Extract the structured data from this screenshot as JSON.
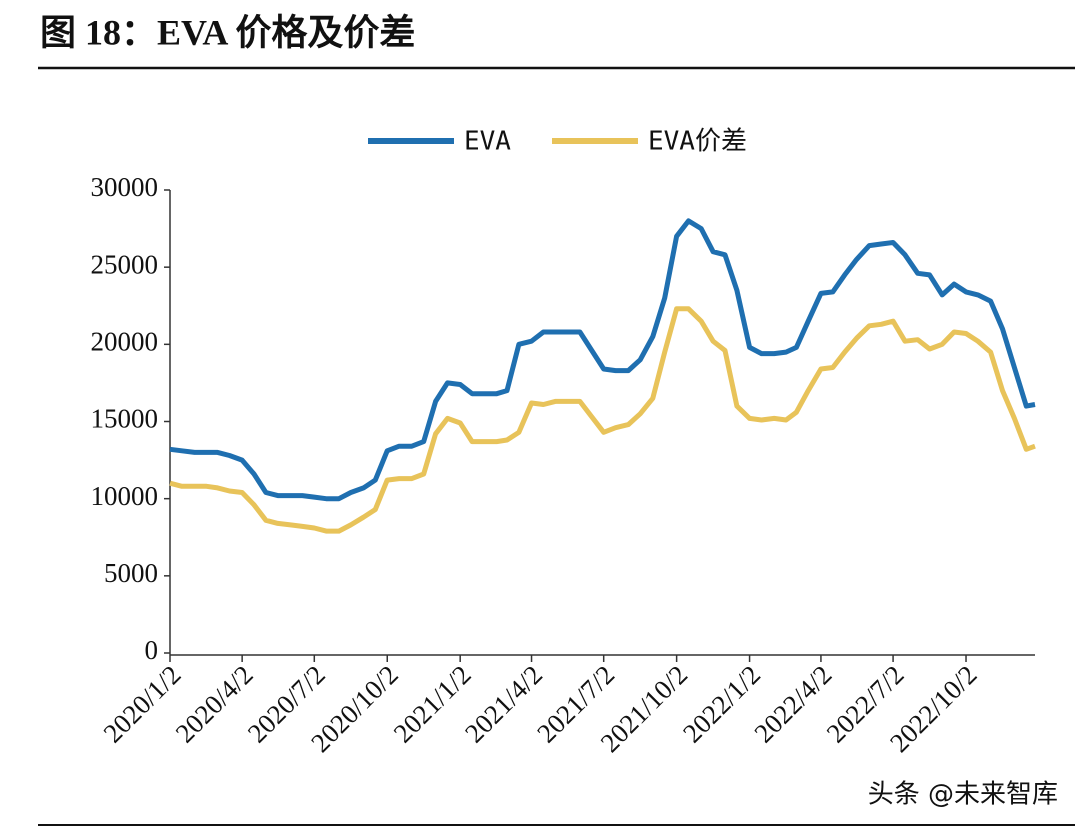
{
  "chart_data": {
    "type": "line",
    "title": "图 18：EVA 价格及价差",
    "watermark": "头条 @未来智库",
    "x": [
      "2020/1/2",
      "2020/1/17",
      "2020/2/2",
      "2020/2/17",
      "2020/3/2",
      "2020/3/17",
      "2020/4/2",
      "2020/4/17",
      "2020/5/2",
      "2020/5/17",
      "2020/6/2",
      "2020/6/17",
      "2020/7/2",
      "2020/7/17",
      "2020/8/2",
      "2020/8/17",
      "2020/9/2",
      "2020/9/17",
      "2020/10/2",
      "2020/10/17",
      "2020/11/2",
      "2020/11/17",
      "2020/12/2",
      "2020/12/17",
      "2021/1/2",
      "2021/1/17",
      "2021/2/2",
      "2021/2/17",
      "2021/3/2",
      "2021/3/17",
      "2021/4/2",
      "2021/4/17",
      "2021/5/2",
      "2021/5/17",
      "2021/6/2",
      "2021/6/17",
      "2021/7/2",
      "2021/7/17",
      "2021/8/2",
      "2021/8/17",
      "2021/9/2",
      "2021/9/17",
      "2021/10/2",
      "2021/10/17",
      "2021/11/2",
      "2021/11/17",
      "2021/12/2",
      "2021/12/17",
      "2022/1/2",
      "2022/1/17",
      "2022/2/2",
      "2022/2/17",
      "2022/3/2",
      "2022/3/17",
      "2022/4/2",
      "2022/4/17",
      "2022/5/2",
      "2022/5/17",
      "2022/6/2",
      "2022/6/17",
      "2022/7/2",
      "2022/7/17",
      "2022/8/2",
      "2022/8/17",
      "2022/9/2",
      "2022/9/17",
      "2022/10/2",
      "2022/10/17",
      "2022/11/2",
      "2022/11/17",
      "2022/12/2",
      "2022/12/17",
      "2022/12/28"
    ],
    "series": [
      {
        "name": "EVA",
        "color": "#1f6fb0",
        "values": [
          13200,
          13100,
          13000,
          13000,
          13000,
          12800,
          12500,
          11600,
          10400,
          10200,
          10200,
          10200,
          10100,
          10000,
          10000,
          10400,
          10700,
          11200,
          13100,
          13400,
          13400,
          13700,
          16300,
          17500,
          17400,
          16800,
          16800,
          16800,
          17000,
          20000,
          20200,
          20800,
          20800,
          20800,
          20800,
          19600,
          18400,
          18300,
          18300,
          19000,
          20500,
          23000,
          27000,
          28000,
          27500,
          26000,
          25800,
          23500,
          19800,
          19400,
          19400,
          19500,
          19800,
          21500,
          23300,
          23400,
          24500,
          25500,
          26400,
          26500,
          26600,
          25800,
          24600,
          24500,
          23200,
          23900,
          23400,
          23200,
          22800,
          21000,
          18500,
          16000,
          16100
        ]
      },
      {
        "name": "EVA价差",
        "color": "#e8c35a",
        "values": [
          11000,
          10800,
          10800,
          10800,
          10700,
          10500,
          10400,
          9600,
          8600,
          8400,
          8300,
          8200,
          8100,
          7900,
          7900,
          8300,
          8800,
          9300,
          11200,
          11300,
          11300,
          11600,
          14200,
          15200,
          14900,
          13700,
          13700,
          13700,
          13800,
          14300,
          16200,
          16100,
          16300,
          16300,
          16300,
          15300,
          14300,
          14600,
          14800,
          15500,
          16500,
          19500,
          22300,
          22300,
          21500,
          20200,
          19600,
          16000,
          15200,
          15100,
          15200,
          15100,
          15600,
          17000,
          18400,
          18500,
          19500,
          20400,
          21200,
          21300,
          21500,
          20200,
          20300,
          19700,
          20000,
          20800,
          20700,
          20200,
          19500,
          17000,
          15200,
          13200,
          13400
        ]
      }
    ],
    "xlim": [
      "2020/1/2",
      "2022/12/28"
    ],
    "xticks": [
      "2020/1/2",
      "2020/4/2",
      "2020/7/2",
      "2020/10/2",
      "2021/1/2",
      "2021/4/2",
      "2021/7/2",
      "2021/10/2",
      "2022/1/2",
      "2022/4/2",
      "2022/7/2",
      "2022/10/2"
    ],
    "ylim": [
      0,
      30000
    ],
    "yticks": [
      0,
      5000,
      10000,
      15000,
      20000,
      25000,
      30000
    ],
    "legend": "top"
  }
}
